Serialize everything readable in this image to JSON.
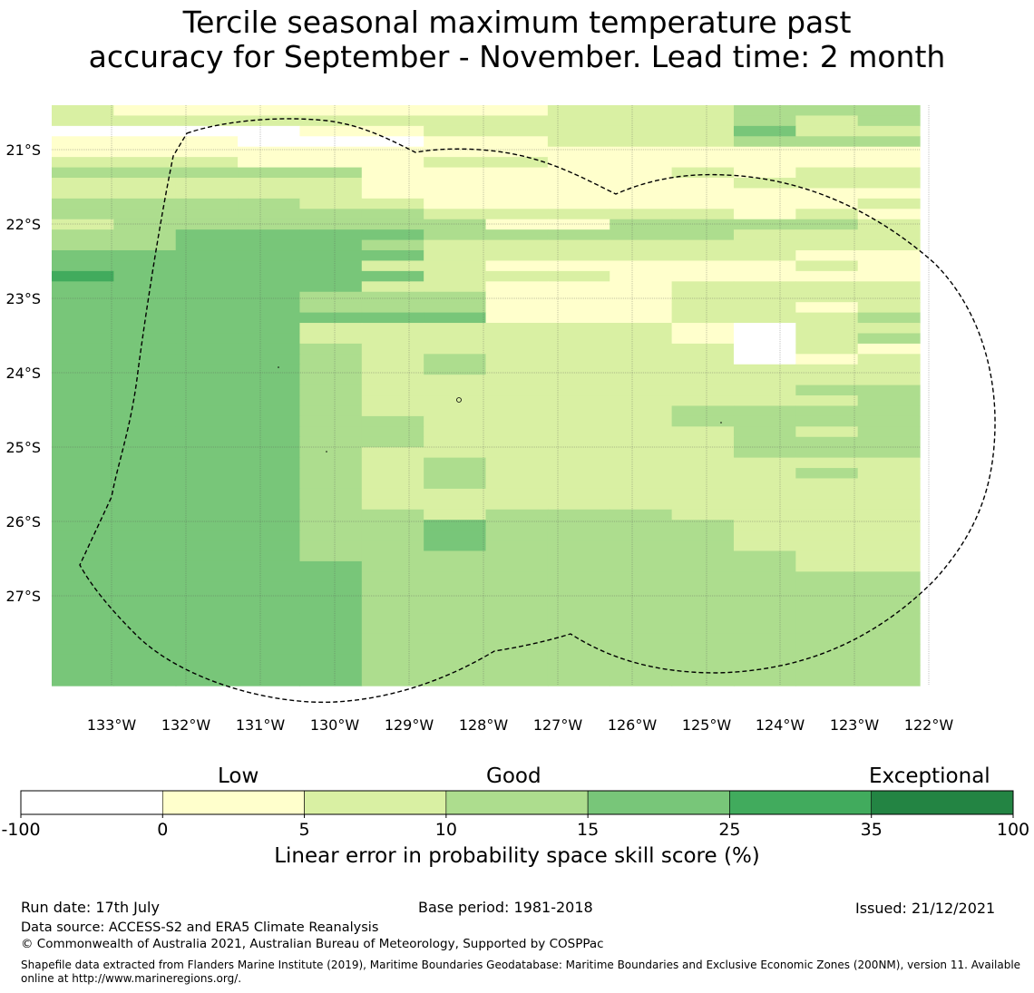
{
  "title": {
    "line1": "Tercile seasonal maximum temperature past",
    "line2": "accuracy for September - November. Lead time: 2 month"
  },
  "map": {
    "lat_labels": [
      "21°S",
      "22°S",
      "23°S",
      "24°S",
      "25°S",
      "26°S",
      "27°S"
    ],
    "lon_labels": [
      "133°W",
      "132°W",
      "131°W",
      "130°W",
      "129°W",
      "128°W",
      "127°W",
      "126°W",
      "125°W",
      "124°W",
      "123°W",
      "122°W"
    ],
    "colors": [
      "#ffffff",
      "#ffffcc",
      "#d9f0a3",
      "#addd8e",
      "#78c679",
      "#41ab5d",
      "#238443"
    ],
    "grid": [
      "21111111222333",
      "22222222222323",
      "00001122222422",
      "11100011222333",
      "11111111111111",
      "22211122111111",
      "33333111112122",
      "22222111111222",
      "22222111111111",
      "33332211111112",
      "33333322222121",
      "23333331133332",
      "33444433333222",
      "33444322222222",
      "44444422222211",
      "44444221111121",
      "54444422211111",
      "44444221112222",
      "44443331112222",
      "44443331112212",
      "44444441112223",
      "44442222221022",
      "44442222221023",
      "44443222222021",
      "44443232222012",
      "44443232222222",
      "44443222222222",
      "44443222222233",
      "44443222222223",
      "44443222223333",
      "44443322223333",
      "44443322222323",
      "44443322222333",
      "44443222222333",
      "44443232222222",
      "44443232222232",
      "44443232222222",
      "44443222222222",
      "44443222222222",
      "44443323332222",
      "44443343333222",
      "44443343333222",
      "44443343333222",
      "44443333333322",
      "44444333333322",
      "44444333333333",
      "44444333333333",
      "44444333333333",
      "44444333333333",
      "44444333333333",
      "44444333333333",
      "44444333333333",
      "44444333333333",
      "44444333333333",
      "44444333333333",
      "44444333333333"
    ]
  },
  "colorbar": {
    "category_labels": [
      "Low",
      "Good",
      "Exceptional"
    ],
    "ticks": [
      "-100",
      "0",
      "5",
      "10",
      "15",
      "25",
      "35",
      "100"
    ],
    "colors": [
      "#ffffff",
      "#ffffcc",
      "#d9f0a3",
      "#addd8e",
      "#78c679",
      "#41ab5d",
      "#238443"
    ],
    "label": "Linear error in probability space skill score (%)"
  },
  "footer": {
    "run_date": "Run date: 17th July",
    "base_period": "Base period: 1981-2018",
    "issued": "Issued: 21/12/2021",
    "data_source": "Data source: ACCESS-S2 and ERA5 Climate Reanalysis",
    "copyright": "© Commonwealth of Australia 2021, Australian Bureau of Meteorology, Supported by COSPPac",
    "shapefile": "Shapefile data extracted from Flanders Marine Institute (2019), Maritime Boundaries Geodatabase: Maritime Boundaries and Exclusive Economic Zones (200NM), version 11. Available online at http://www.marineregions.org/."
  }
}
